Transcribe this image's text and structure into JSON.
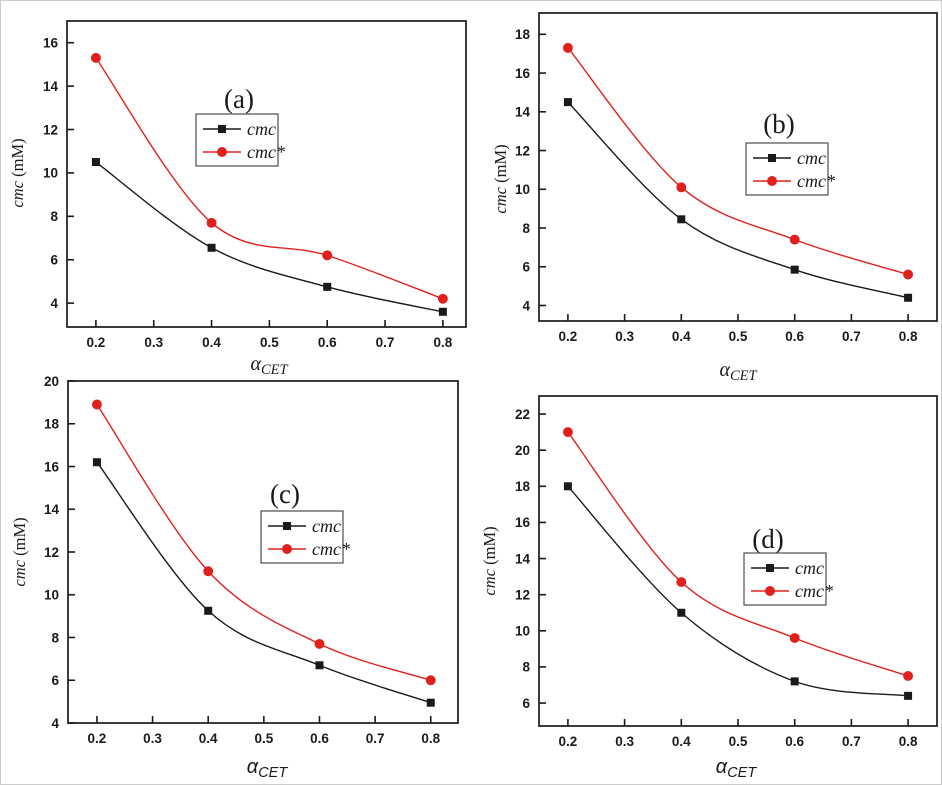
{
  "figure": {
    "background": "#ffffff",
    "border_color": "#cccccc",
    "axis_color": "#1a1a1a",
    "black_series_color": "#1a1a1a",
    "red_series_color": "#e0201d"
  },
  "chart_data": [
    {
      "id": "a",
      "type": "line",
      "panel_label": "(a)",
      "x": [
        0.2,
        0.4,
        0.6,
        0.8
      ],
      "series": [
        {
          "name": "cmc",
          "marker": "square",
          "color": "#1a1a1a",
          "values": [
            10.5,
            6.55,
            4.75,
            3.6
          ]
        },
        {
          "name": "cmc*",
          "marker": "circle",
          "color": "#e0201d",
          "values": [
            15.3,
            7.7,
            6.2,
            4.2
          ]
        }
      ],
      "xlabel": {
        "symbol": "α",
        "subscript": "CET",
        "font": "serif"
      },
      "ylabel": {
        "italic": "cmc",
        "rest": " (mM)"
      },
      "xticks": [
        0.2,
        0.3,
        0.4,
        0.5,
        0.6,
        0.7,
        0.8
      ],
      "yticks": [
        4,
        6,
        8,
        10,
        12,
        14,
        16
      ],
      "xlim": [
        0.15,
        0.84
      ],
      "ylim": [
        2.9,
        17.0
      ],
      "grid": false,
      "legend": {
        "labels": [
          "cmc",
          "cmc*"
        ],
        "position": "inside upper-middle"
      }
    },
    {
      "id": "b",
      "type": "line",
      "panel_label": "(b)",
      "x": [
        0.2,
        0.4,
        0.6,
        0.8
      ],
      "series": [
        {
          "name": "cmc",
          "marker": "square",
          "color": "#1a1a1a",
          "values": [
            14.5,
            8.45,
            5.85,
            4.4
          ]
        },
        {
          "name": "cmc*",
          "marker": "circle",
          "color": "#e0201d",
          "values": [
            17.3,
            10.1,
            7.4,
            5.6
          ]
        }
      ],
      "xlabel": {
        "symbol": "α",
        "subscript": "CET",
        "font": "serif"
      },
      "ylabel": {
        "italic": "cmc",
        "rest": " (mM)"
      },
      "xticks": [
        0.2,
        0.3,
        0.4,
        0.5,
        0.6,
        0.7,
        0.8
      ],
      "yticks": [
        4,
        6,
        8,
        10,
        12,
        14,
        16,
        18
      ],
      "xlim": [
        0.149,
        0.851
      ],
      "ylim": [
        3.2,
        19.1
      ],
      "grid": false,
      "legend": {
        "labels": [
          "cmc",
          "cmc*"
        ],
        "position": "inside right-middle"
      }
    },
    {
      "id": "c",
      "type": "line",
      "panel_label": "(c)",
      "x": [
        0.2,
        0.4,
        0.6,
        0.8
      ],
      "series": [
        {
          "name": "cmc",
          "marker": "square",
          "color": "#1a1a1a",
          "values": [
            16.2,
            9.25,
            6.7,
            4.95
          ]
        },
        {
          "name": "cmc*",
          "marker": "circle",
          "color": "#e0201d",
          "values": [
            18.9,
            11.1,
            7.7,
            6.0
          ]
        }
      ],
      "xlabel": {
        "symbol": "α",
        "subscript": "CET",
        "font": "sans"
      },
      "ylabel": {
        "italic": "cmc",
        "rest": " (mM)"
      },
      "xticks": [
        0.2,
        0.3,
        0.4,
        0.5,
        0.6,
        0.7,
        0.8
      ],
      "yticks": [
        4,
        6,
        8,
        10,
        12,
        14,
        16,
        18,
        20
      ],
      "xlim": [
        0.148,
        0.849
      ],
      "ylim": [
        4,
        20
      ],
      "grid": false,
      "legend": {
        "labels": [
          "cmc",
          "cmc*"
        ],
        "position": "inside center"
      }
    },
    {
      "id": "d",
      "type": "line",
      "panel_label": "(d)",
      "x": [
        0.2,
        0.4,
        0.6,
        0.8
      ],
      "series": [
        {
          "name": "cmc",
          "marker": "square",
          "color": "#1a1a1a",
          "values": [
            18.0,
            11.0,
            7.2,
            6.4
          ]
        },
        {
          "name": "cmc*",
          "marker": "circle",
          "color": "#e0201d",
          "values": [
            21.0,
            12.7,
            9.6,
            7.5
          ]
        }
      ],
      "xlabel": {
        "symbol": "α",
        "subscript": "CET",
        "font": "sans"
      },
      "ylabel": {
        "italic": "cmc",
        "rest": " (mM)"
      },
      "xticks": [
        0.2,
        0.3,
        0.4,
        0.5,
        0.6,
        0.7,
        0.8
      ],
      "yticks": [
        6,
        8,
        10,
        12,
        14,
        16,
        18,
        20,
        22
      ],
      "xlim": [
        0.149,
        0.851
      ],
      "ylim": [
        4.73,
        23.0
      ],
      "grid": false,
      "legend": {
        "labels": [
          "cmc",
          "cmc*"
        ],
        "position": "inside center"
      }
    }
  ]
}
